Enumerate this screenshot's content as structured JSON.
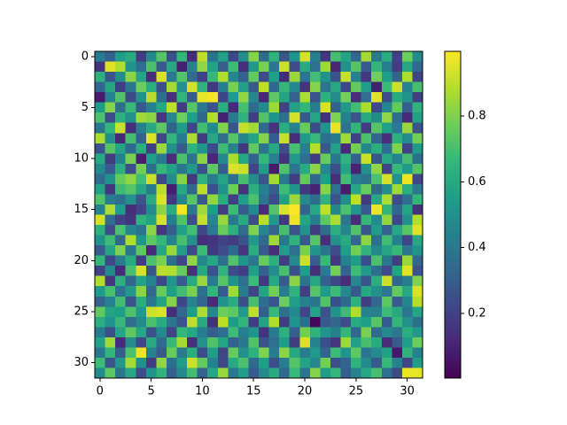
{
  "chart_data": {
    "type": "heatmap",
    "colormap": "viridis",
    "xlim": [
      -0.5,
      31.5
    ],
    "ylim": [
      31.5,
      -0.5
    ],
    "xticks": [
      0,
      5,
      10,
      15,
      20,
      25,
      30
    ],
    "yticks": [
      0,
      5,
      10,
      15,
      20,
      25,
      30
    ],
    "clim": [
      0.004,
      0.996
    ],
    "cticks": [
      0.2,
      0.4,
      0.6,
      0.8
    ],
    "z": [
      [
        0.42,
        0.31,
        0.55,
        0.61,
        0.18,
        0.47,
        0.73,
        0.25,
        0.66,
        0.12,
        0.9,
        0.38,
        0.57,
        0.22,
        0.49,
        0.81,
        0.35,
        0.64,
        0.27,
        0.52,
        0.93,
        0.44,
        0.16,
        0.7,
        0.58,
        0.33,
        0.86,
        0.41,
        0.62,
        0.2,
        0.77,
        0.48
      ],
      [
        0.15,
        0.95,
        0.88,
        0.52,
        0.36,
        0.71,
        0.28,
        0.6,
        0.09,
        0.45,
        0.83,
        0.57,
        0.3,
        0.68,
        0.14,
        0.53,
        0.79,
        0.4,
        0.92,
        0.24,
        0.61,
        0.37,
        0.85,
        0.11,
        0.5,
        0.73,
        0.29,
        0.66,
        0.43,
        0.18,
        0.59,
        0.34
      ],
      [
        0.63,
        0.27,
        0.49,
        0.82,
        0.58,
        0.13,
        0.94,
        0.41,
        0.72,
        0.35,
        0.2,
        0.67,
        0.88,
        0.46,
        0.31,
        0.75,
        0.23,
        0.56,
        0.12,
        0.84,
        0.39,
        0.69,
        0.51,
        0.26,
        0.91,
        0.44,
        0.17,
        0.78,
        0.55,
        0.32,
        0.87,
        0.21
      ],
      [
        0.33,
        0.58,
        0.19,
        0.4,
        0.77,
        0.62,
        0.25,
        0.86,
        0.5,
        0.93,
        0.64,
        0.16,
        0.43,
        0.79,
        0.57,
        0.28,
        0.9,
        0.34,
        0.66,
        0.47,
        0.15,
        0.81,
        0.38,
        0.6,
        0.22,
        0.75,
        0.54,
        0.09,
        0.68,
        0.92,
        0.45,
        0.7
      ],
      [
        0.08,
        0.44,
        0.72,
        0.23,
        0.51,
        0.89,
        0.37,
        0.14,
        0.65,
        0.29,
        0.96,
        0.98,
        0.21,
        0.54,
        0.83,
        0.46,
        0.11,
        0.74,
        0.58,
        0.31,
        0.87,
        0.26,
        0.63,
        0.49,
        0.78,
        0.13,
        0.36,
        0.95,
        0.24,
        0.61,
        0.52,
        0.19
      ],
      [
        0.55,
        0.81,
        0.36,
        0.67,
        0.28,
        0.44,
        0.59,
        0.9,
        0.18,
        0.73,
        0.4,
        0.26,
        0.62,
        0.12,
        0.7,
        0.35,
        0.48,
        0.85,
        0.2,
        0.57,
        0.66,
        0.42,
        0.94,
        0.31,
        0.53,
        0.69,
        0.87,
        0.22,
        0.46,
        0.75,
        0.3,
        0.64
      ],
      [
        0.71,
        0.24,
        0.63,
        0.5,
        0.85,
        0.82,
        0.16,
        0.47,
        0.77,
        0.56,
        0.33,
        0.88,
        0.09,
        0.41,
        0.64,
        0.19,
        0.72,
        0.52,
        0.37,
        0.93,
        0.28,
        0.58,
        0.14,
        0.8,
        0.44,
        0.27,
        0.61,
        0.49,
        0.83,
        0.35,
        0.12,
        0.57
      ],
      [
        0.39,
        0.66,
        0.92,
        0.14,
        0.43,
        0.6,
        0.74,
        0.32,
        0.55,
        0.21,
        0.69,
        0.48,
        0.8,
        0.27,
        0.91,
        0.86,
        0.34,
        0.15,
        0.62,
        0.45,
        0.76,
        0.23,
        0.52,
        0.97,
        0.38,
        0.65,
        0.18,
        0.73,
        0.56,
        0.41,
        0.84,
        0.26
      ],
      [
        0.87,
        0.49,
        0.11,
        0.7,
        0.31,
        0.95,
        0.22,
        0.65,
        0.42,
        0.87,
        0.17,
        0.59,
        0.35,
        0.73,
        0.46,
        0.58,
        0.81,
        0.29,
        0.91,
        0.13,
        0.54,
        0.67,
        0.36,
        0.42,
        0.85,
        0.2,
        0.71,
        0.32,
        0.14,
        0.63,
        0.48,
        0.78
      ],
      [
        0.26,
        0.73,
        0.58,
        0.34,
        0.62,
        0.19,
        0.84,
        0.5,
        0.28,
        0.64,
        0.52,
        0.23,
        0.68,
        0.45,
        0.16,
        0.75,
        0.38,
        0.6,
        0.24,
        0.7,
        0.43,
        0.89,
        0.28,
        0.57,
        0.12,
        0.78,
        0.46,
        0.62,
        0.36,
        0.8,
        0.2,
        0.55
      ],
      [
        0.6,
        0.18,
        0.45,
        0.79,
        0.09,
        0.56,
        0.41,
        0.13,
        0.71,
        0.38,
        0.82,
        0.11,
        0.47,
        0.87,
        0.59,
        0.32,
        0.66,
        0.44,
        0.15,
        0.53,
        0.36,
        0.18,
        0.76,
        0.4,
        0.64,
        0.31,
        0.92,
        0.27,
        0.59,
        0.45,
        0.69,
        0.37
      ],
      [
        0.48,
        0.29,
        0.62,
        0.24,
        0.78,
        0.37,
        0.66,
        0.57,
        0.39,
        0.53,
        0.26,
        0.74,
        0.3,
        0.94,
        0.92,
        0.21,
        0.55,
        0.08,
        0.72,
        0.39,
        0.61,
        0.82,
        0.47,
        0.25,
        0.58,
        0.1,
        0.5,
        0.83,
        0.21,
        0.67,
        0.54,
        0.73
      ],
      [
        0.35,
        0.51,
        0.76,
        0.83,
        0.69,
        0.92,
        0.22,
        0.48,
        0.81,
        0.17,
        0.64,
        0.42,
        0.58,
        0.36,
        0.7,
        0.49,
        0.27,
        0.86,
        0.41,
        0.18,
        0.75,
        0.33,
        0.56,
        0.14,
        0.69,
        0.43,
        0.38,
        0.71,
        0.93,
        0.5,
        0.97,
        0.22
      ],
      [
        0.57,
        0.16,
        0.68,
        0.73,
        0.59,
        0.42,
        0.89,
        0.09,
        0.6,
        0.33,
        0.9,
        0.25,
        0.51,
        0.77,
        0.15,
        0.63,
        0.44,
        0.3,
        0.68,
        0.52,
        0.16,
        0.1,
        0.81,
        0.37,
        0.08,
        0.59,
        0.76,
        0.34,
        0.48,
        0.85,
        0.62,
        0.4
      ],
      [
        0.72,
        0.42,
        0.37,
        0.5,
        0.27,
        0.61,
        0.94,
        0.17,
        0.46,
        0.73,
        0.28,
        0.83,
        0.62,
        0.19,
        0.55,
        0.71,
        0.4,
        0.23,
        0.57,
        0.84,
        0.47,
        0.35,
        0.64,
        0.26,
        0.49,
        0.9,
        0.17,
        0.6,
        0.87,
        0.23,
        0.36,
        0.66
      ],
      [
        0.44,
        0.87,
        0.55,
        0.13,
        0.21,
        0.48,
        0.82,
        0.61,
        0.98,
        0.39,
        0.85,
        0.55,
        0.18,
        0.68,
        0.29,
        0.47,
        0.12,
        0.72,
        0.94,
        0.99,
        0.32,
        0.6,
        0.9,
        0.46,
        0.71,
        0.52,
        0.28,
        0.97,
        0.65,
        0.33,
        0.58,
        0.15
      ],
      [
        0.93,
        0.35,
        0.2,
        0.15,
        0.64,
        0.57,
        0.94,
        0.43,
        0.72,
        0.24,
        0.91,
        0.46,
        0.84,
        0.41,
        0.61,
        0.24,
        0.89,
        0.53,
        0.16,
        0.97,
        0.58,
        0.43,
        0.74,
        0.87,
        0.39,
        0.13,
        0.66,
        0.48,
        0.83,
        0.22,
        0.5,
        0.88
      ],
      [
        0.63,
        0.24,
        0.71,
        0.46,
        0.38,
        0.82,
        0.16,
        0.3,
        0.57,
        0.69,
        0.22,
        0.4,
        0.76,
        0.63,
        0.35,
        0.8,
        0.46,
        0.32,
        0.7,
        0.26,
        0.51,
        0.18,
        0.35,
        0.62,
        0.46,
        0.72,
        0.27,
        0.54,
        0.31,
        0.59,
        0.73,
        0.95
      ],
      [
        0.51,
        0.68,
        0.33,
        0.88,
        0.52,
        0.74,
        0.66,
        0.45,
        0.7,
        0.5,
        0.13,
        0.15,
        0.2,
        0.18,
        0.26,
        0.53,
        0.34,
        0.85,
        0.4,
        0.64,
        0.28,
        0.73,
        0.13,
        0.5,
        0.61,
        0.33,
        0.82,
        0.37,
        0.69,
        0.44,
        0.21,
        0.6
      ],
      [
        0.29,
        0.58,
        0.8,
        0.39,
        0.74,
        0.12,
        0.59,
        0.84,
        0.55,
        0.22,
        0.68,
        0.17,
        0.24,
        0.34,
        0.16,
        0.62,
        0.28,
        0.14,
        0.55,
        0.36,
        0.79,
        0.52,
        0.38,
        0.24,
        0.56,
        0.78,
        0.64,
        0.46,
        0.58,
        0.67,
        0.39,
        0.52
      ],
      [
        0.66,
        0.22,
        0.42,
        0.61,
        0.18,
        0.71,
        0.79,
        0.37,
        0.21,
        0.83,
        0.47,
        0.59,
        0.36,
        0.72,
        0.52,
        0.4,
        0.76,
        0.63,
        0.18,
        0.47,
        0.92,
        0.3,
        0.67,
        0.16,
        0.44,
        0.55,
        0.25,
        0.71,
        0.4,
        0.19,
        0.84,
        0.33
      ],
      [
        0.2,
        0.47,
        0.12,
        0.7,
        0.94,
        0.27,
        0.89,
        0.88,
        0.76,
        0.14,
        0.6,
        0.26,
        0.64,
        0.23,
        0.19,
        0.56,
        0.31,
        0.49,
        0.7,
        0.25,
        0.55,
        0.14,
        0.42,
        0.78,
        0.31,
        0.68,
        0.53,
        0.36,
        0.23,
        0.58,
        0.95,
        0.26
      ],
      [
        0.88,
        0.16,
        0.63,
        0.33,
        0.57,
        0.45,
        0.22,
        0.52,
        0.29,
        0.61,
        0.84,
        0.42,
        0.73,
        0.51,
        0.36,
        0.68,
        0.17,
        0.6,
        0.29,
        0.82,
        0.38,
        0.6,
        0.31,
        0.22,
        0.13,
        0.46,
        0.27,
        0.62,
        0.92,
        0.34,
        0.43,
        0.8
      ],
      [
        0.54,
        0.7,
        0.38,
        0.53,
        0.82,
        0.33,
        0.76,
        0.56,
        0.69,
        0.79,
        0.37,
        0.65,
        0.28,
        0.85,
        0.42,
        0.21,
        0.58,
        0.78,
        0.42,
        0.64,
        0.19,
        0.73,
        0.54,
        0.68,
        0.47,
        0.28,
        0.6,
        0.5,
        0.4,
        0.75,
        0.6,
        0.94
      ],
      [
        0.31,
        0.44,
        0.69,
        0.26,
        0.62,
        0.4,
        0.58,
        0.81,
        0.21,
        0.45,
        0.32,
        0.12,
        0.51,
        0.61,
        0.25,
        0.7,
        0.36,
        0.26,
        0.77,
        0.55,
        0.44,
        0.38,
        0.72,
        0.25,
        0.34,
        0.63,
        0.19,
        0.33,
        0.74,
        0.29,
        0.46,
        0.89
      ],
      [
        0.75,
        0.58,
        0.56,
        0.71,
        0.54,
        0.92,
        0.94,
        0.13,
        0.33,
        0.56,
        0.87,
        0.46,
        0.77,
        0.74,
        0.54,
        0.9,
        0.3,
        0.67,
        0.37,
        0.47,
        0.21,
        0.57,
        0.26,
        0.51,
        0.68,
        0.88,
        0.45,
        0.43,
        0.68,
        0.6,
        0.39,
        0.58
      ],
      [
        0.62,
        0.52,
        0.67,
        0.35,
        0.48,
        0.71,
        0.61,
        0.4,
        0.26,
        0.9,
        0.61,
        0.14,
        0.9,
        0.55,
        0.65,
        0.19,
        0.57,
        0.88,
        0.18,
        0.52,
        0.36,
        0.02,
        0.28,
        0.33,
        0.24,
        0.61,
        0.56,
        0.73,
        0.29,
        0.65,
        0.5,
        0.37
      ],
      [
        0.41,
        0.25,
        0.58,
        0.74,
        0.59,
        0.26,
        0.48,
        0.21,
        0.66,
        0.59,
        0.42,
        0.3,
        0.36,
        0.68,
        0.43,
        0.52,
        0.15,
        0.42,
        0.63,
        0.3,
        0.78,
        0.64,
        0.52,
        0.44,
        0.66,
        0.33,
        0.79,
        0.35,
        0.47,
        0.4,
        0.62,
        0.53
      ],
      [
        0.57,
        0.85,
        0.12,
        0.48,
        0.22,
        0.61,
        0.35,
        0.67,
        0.86,
        0.14,
        0.5,
        0.72,
        0.58,
        0.31,
        0.4,
        0.72,
        0.26,
        0.37,
        0.55,
        0.18,
        0.94,
        0.45,
        0.25,
        0.16,
        0.85,
        0.57,
        0.7,
        0.61,
        0.13,
        0.29,
        0.55,
        0.77
      ],
      [
        0.4,
        0.65,
        0.3,
        0.71,
        0.97,
        0.44,
        0.28,
        0.76,
        0.41,
        0.62,
        0.24,
        0.55,
        0.21,
        0.76,
        0.5,
        0.63,
        0.8,
        0.42,
        0.82,
        0.6,
        0.42,
        0.53,
        0.32,
        0.68,
        0.52,
        0.74,
        0.39,
        0.48,
        0.57,
        0.07,
        0.64,
        0.44
      ],
      [
        0.68,
        0.27,
        0.53,
        0.86,
        0.5,
        0.18,
        0.83,
        0.37,
        0.55,
        0.92,
        0.75,
        0.45,
        0.22,
        0.61,
        0.71,
        0.34,
        0.56,
        0.25,
        0.43,
        0.73,
        0.58,
        0.46,
        0.78,
        0.25,
        0.32,
        0.64,
        0.48,
        0.29,
        0.67,
        0.45,
        0.21,
        0.55
      ],
      [
        0.48,
        0.74,
        0.39,
        0.6,
        0.23,
        0.51,
        0.64,
        0.3,
        0.47,
        0.69,
        0.31,
        0.59,
        0.84,
        0.4,
        0.56,
        0.29,
        0.48,
        0.61,
        0.34,
        0.67,
        0.38,
        0.81,
        0.55,
        0.66,
        0.3,
        0.45,
        0.59,
        0.7,
        0.36,
        0.23,
        0.97,
        0.96
      ]
    ]
  }
}
